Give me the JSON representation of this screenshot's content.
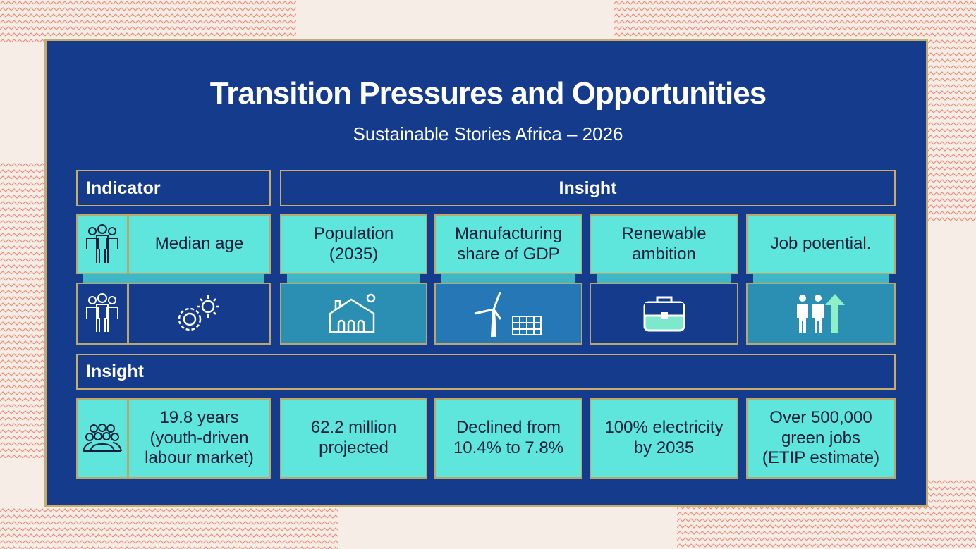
{
  "title": "Transition Pressures and Opportunities",
  "subtitle": "Sustainable Stories Africa – 2026",
  "headers": {
    "indicator": "Indicator",
    "insight": "Insight",
    "insight_row": "Insight"
  },
  "indicators": [
    {
      "label": "Median age",
      "icon": "people-group-icon",
      "icon2": "gear-sun-icon",
      "value": "19.8 years (youth-driven labour market)"
    },
    {
      "label": "Population (2035)",
      "icon": "house-icon",
      "value": "62.2 million projected"
    },
    {
      "label": "Manufacturing share of GDP",
      "icon": "wind-turbine-solar-icon",
      "value": "Declined from 10.4% to 7.8%"
    },
    {
      "label": "Renewable ambition",
      "icon": "briefcase-icon",
      "value": "100% electricity by 2035"
    },
    {
      "label": "Job potential.",
      "icon": "people-arrow-up-icon",
      "value": "Over 500,000 green jobs (ETIP estimate)"
    }
  ],
  "colors": {
    "frame": "#143b8c",
    "cyan": "#5ee6dc",
    "gold": "#c9ab6a"
  }
}
